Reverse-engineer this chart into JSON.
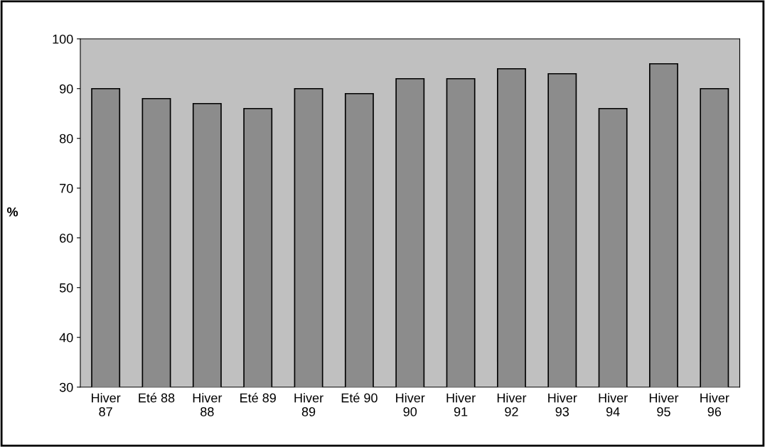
{
  "chart_data": {
    "type": "bar",
    "ylabel": "%",
    "categories": [
      "Hiver 87",
      "Eté 88",
      "Hiver 88",
      "Eté 89",
      "Hiver 89",
      "Eté 90",
      "Hiver 90",
      "Hiver 91",
      "Hiver 92",
      "Hiver 93",
      "Hiver 94",
      "Hiver 95",
      "Hiver 96"
    ],
    "values": [
      90,
      88,
      87,
      86,
      90,
      89,
      92,
      92,
      94,
      93,
      86,
      95,
      90
    ],
    "color": "#8c8c8c",
    "ylim": [
      30,
      100
    ],
    "yticks": [
      30,
      40,
      50,
      60,
      70,
      80,
      90,
      100
    ],
    "grid": false,
    "legend": false
  }
}
